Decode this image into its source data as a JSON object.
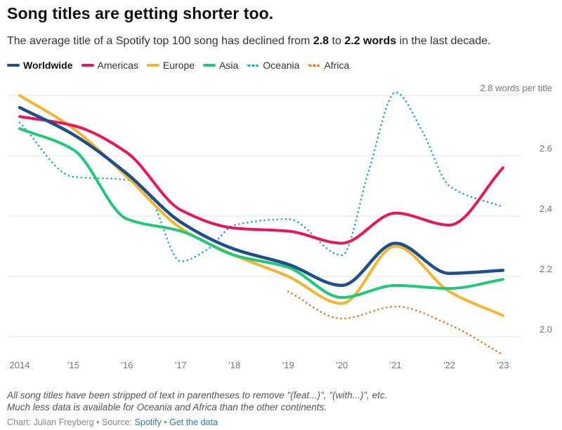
{
  "header": {
    "title": "Song titles are getting shorter too.",
    "subtitle_pre": "The average title of a Spotify top 100 song has declined from ",
    "subtitle_from": "2.8",
    "subtitle_mid": " to ",
    "subtitle_to": "2.2 words",
    "subtitle_post": " in the last decade."
  },
  "legend": [
    {
      "label": "Worldwide",
      "color": "#1f4e8c",
      "style": "solid",
      "bold": true
    },
    {
      "label": "Americas",
      "color": "#e8175d",
      "style": "solid",
      "bold": false
    },
    {
      "label": "Europe",
      "color": "#f2b632",
      "style": "solid",
      "bold": false
    },
    {
      "label": "Asia",
      "color": "#1fc97a",
      "style": "solid",
      "bold": false
    },
    {
      "label": "Oceania",
      "color": "#1ba9c0",
      "style": "dotted",
      "bold": false
    },
    {
      "label": "Africa",
      "color": "#e8731a",
      "style": "dotted",
      "bold": false
    }
  ],
  "chart_data": {
    "type": "line",
    "x": [
      2014,
      2015,
      2016,
      2017,
      2018,
      2019,
      2020,
      2021,
      2022,
      2023
    ],
    "x_tick_labels": [
      "2014",
      "'15",
      "'16",
      "'17",
      "'18",
      "'19",
      "'20",
      "'21",
      "'22",
      "'23"
    ],
    "y_ticks": [
      2.0,
      2.2,
      2.4,
      2.6,
      2.8
    ],
    "y_tick_labels": [
      "2.0",
      "2.2",
      "2.4",
      "2.6",
      "2.8 words per title"
    ],
    "ylim": [
      1.94,
      2.82
    ],
    "grid": true,
    "legend_position": "top-left",
    "series": [
      {
        "name": "Oceania",
        "color": "#1ba9c0",
        "style": "dotted",
        "x": [
          2014,
          2015,
          2016,
          2016.4,
          2017,
          2017.5,
          2018,
          2019,
          2020,
          2020.5,
          2021,
          2021.5,
          2022,
          2023
        ],
        "values": [
          2.71,
          2.53,
          2.52,
          2.47,
          2.25,
          2.29,
          2.37,
          2.39,
          2.27,
          2.55,
          2.81,
          2.68,
          2.5,
          2.43
        ]
      },
      {
        "name": "Africa",
        "color": "#e8731a",
        "style": "dotted",
        "x": [
          2019,
          2020,
          2021,
          2022,
          2023
        ],
        "values": [
          2.15,
          2.06,
          2.1,
          2.04,
          1.94
        ]
      },
      {
        "name": "Europe",
        "color": "#f2b632",
        "style": "solid",
        "x": [
          2014,
          2015,
          2016,
          2017,
          2018,
          2019,
          2020,
          2021,
          2022,
          2023
        ],
        "values": [
          2.8,
          2.69,
          2.53,
          2.36,
          2.27,
          2.2,
          2.11,
          2.3,
          2.15,
          2.07
        ]
      },
      {
        "name": "Asia",
        "color": "#1fc97a",
        "style": "solid",
        "x": [
          2014,
          2015,
          2016,
          2017,
          2018,
          2019,
          2020,
          2021,
          2022,
          2023
        ],
        "values": [
          2.69,
          2.62,
          2.39,
          2.35,
          2.27,
          2.23,
          2.13,
          2.17,
          2.16,
          2.19
        ]
      },
      {
        "name": "Americas",
        "color": "#e8175d",
        "style": "solid",
        "x": [
          2014,
          2015,
          2016,
          2017,
          2018,
          2019,
          2020,
          2021,
          2022,
          2023
        ],
        "values": [
          2.73,
          2.7,
          2.61,
          2.42,
          2.36,
          2.35,
          2.31,
          2.41,
          2.37,
          2.56
        ]
      },
      {
        "name": "Worldwide",
        "color": "#1f4e8c",
        "style": "solid",
        "x": [
          2014,
          2015,
          2016,
          2017,
          2018,
          2019,
          2020,
          2021,
          2022,
          2023
        ],
        "values": [
          2.76,
          2.67,
          2.54,
          2.38,
          2.29,
          2.24,
          2.17,
          2.31,
          2.21,
          2.22
        ]
      }
    ]
  },
  "footer": {
    "note1": "All song titles have been stripped of text in parentheses to remove \"(feat...)\", \"(with...)\", etc.",
    "note2": "Much less data is available for Oceania and Africa than the other continents.",
    "credit_prefix": "Chart: Julian Freyberg • Source: ",
    "source_link": "Spotify",
    "separator": " • ",
    "data_link": "Get the data"
  }
}
